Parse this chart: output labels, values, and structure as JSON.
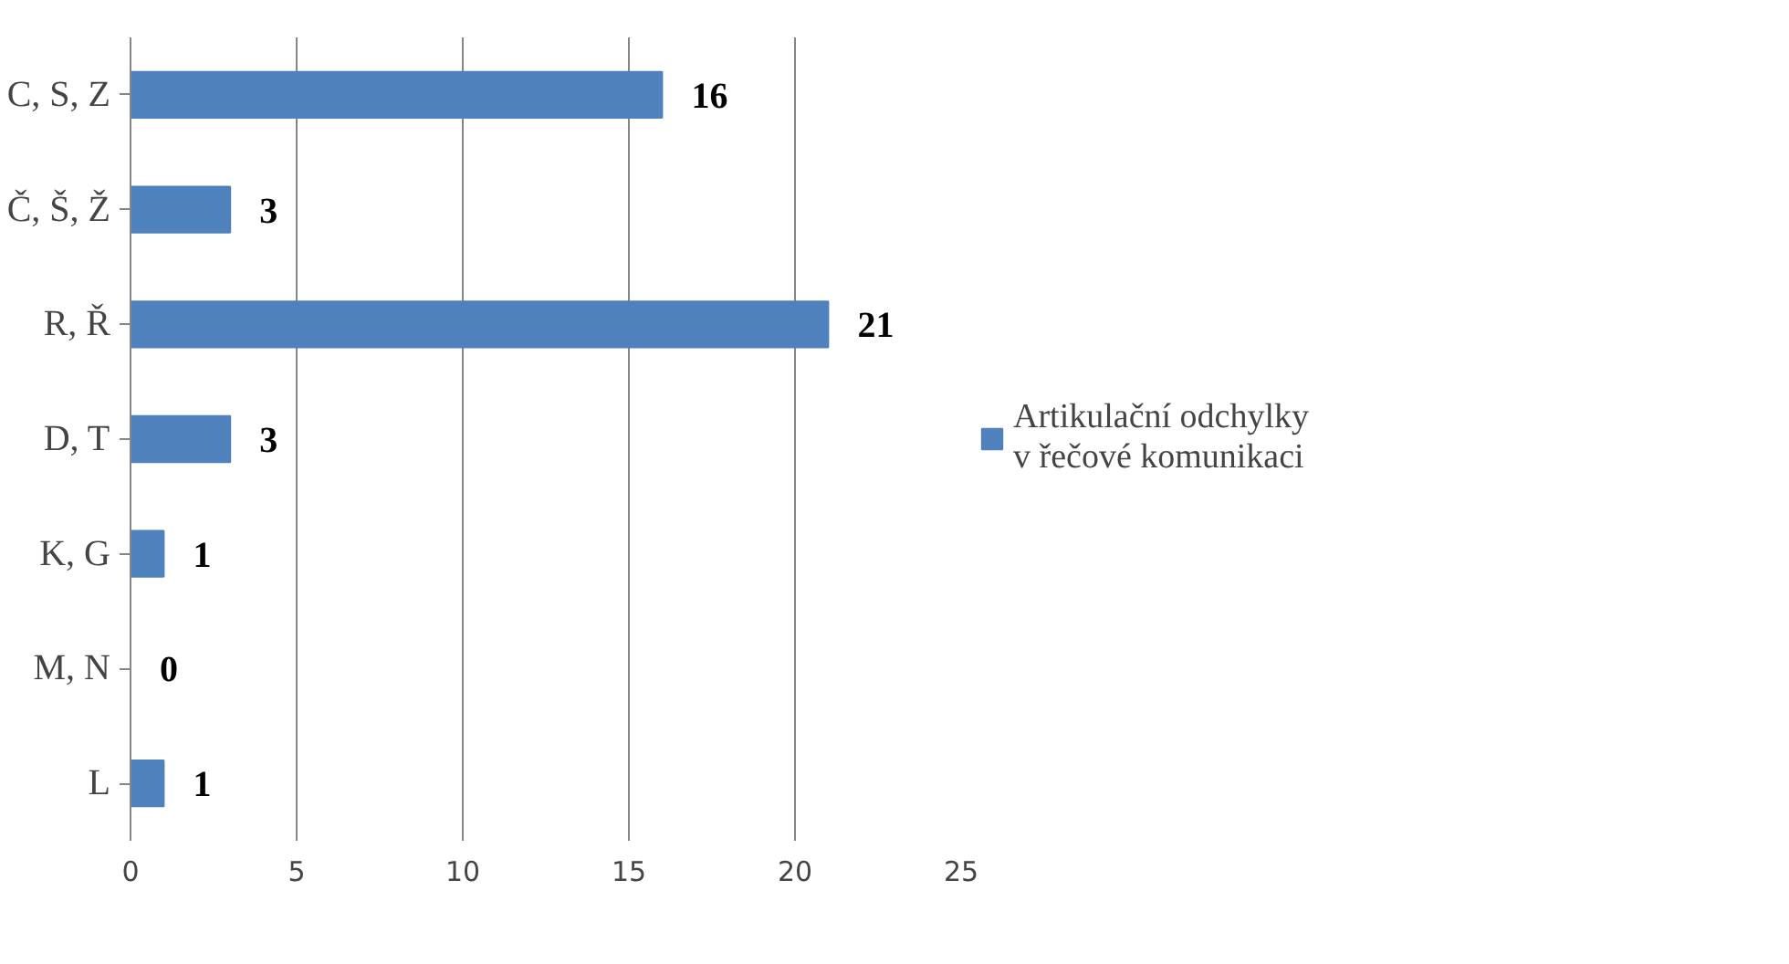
{
  "chart_data": {
    "type": "bar",
    "orientation": "horizontal",
    "categories": [
      "C, S, Z",
      "Č, Š, Ž",
      "R, Ř",
      "D, T",
      "K, G",
      "M, N",
      "L"
    ],
    "series": [
      {
        "name": "Artikulační odchylky v řečové komunikaci",
        "color": "#4f81bd",
        "values": [
          16,
          3,
          21,
          3,
          1,
          0,
          1
        ]
      }
    ],
    "xlim": [
      0,
      25
    ],
    "xticks": [
      0,
      5,
      10,
      15,
      20,
      25
    ],
    "grid": "x",
    "legend": "right",
    "data_labels": true
  }
}
